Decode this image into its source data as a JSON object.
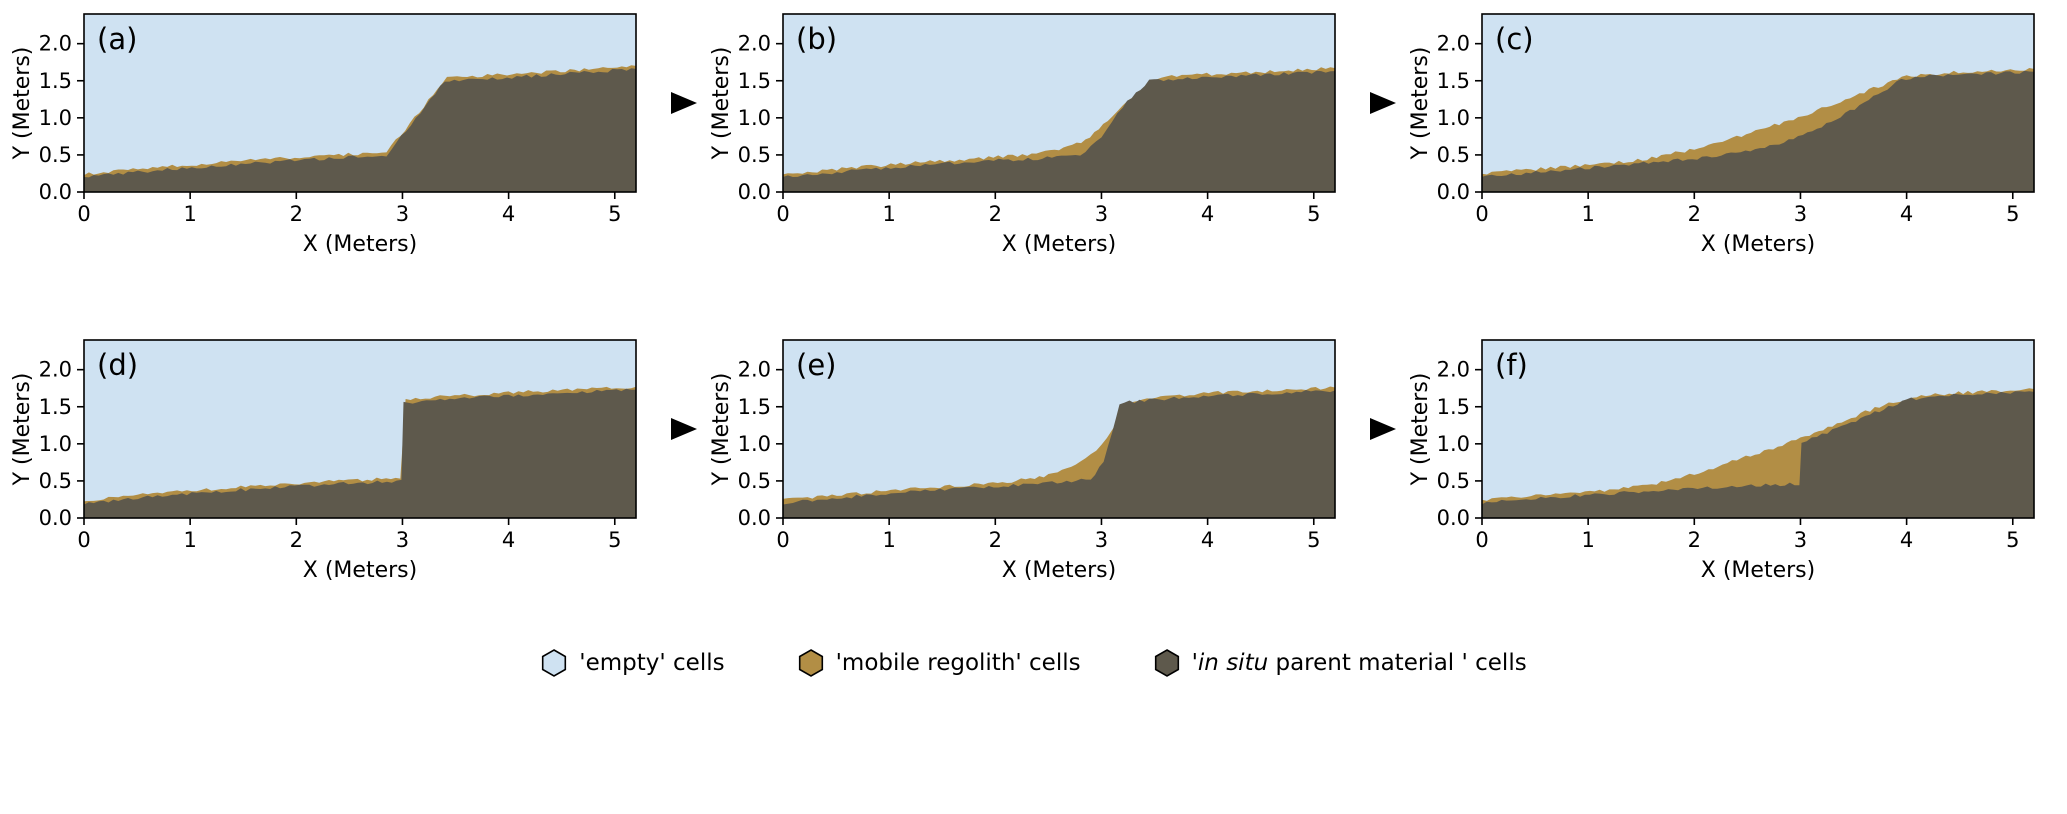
{
  "colors": {
    "empty": "#cfe2f2",
    "regolith": "#b28e45",
    "parent": "#5e594c",
    "axis": "#000000",
    "background": "#ffffff"
  },
  "legend": {
    "items": [
      {
        "id": "empty-cells",
        "color_key": "empty",
        "segments": [
          {
            "text": "'empty' cells",
            "italic": false
          }
        ]
      },
      {
        "id": "mobile-regolith-cells",
        "color_key": "regolith",
        "segments": [
          {
            "text": "'mobile regolith' cells",
            "italic": false
          }
        ]
      },
      {
        "id": "parent-material-cells",
        "color_key": "parent",
        "segments": [
          {
            "text": "'",
            "italic": false
          },
          {
            "text": "in situ",
            "italic": true
          },
          {
            "text": " parent material ' cells",
            "italic": false
          }
        ]
      }
    ]
  },
  "arrows": {
    "count": 4,
    "direction": "right",
    "color": "#000000"
  },
  "chart_data": [
    {
      "type": "area",
      "id": "a",
      "panel_label": "(a)",
      "xlabel": "X (Meters)",
      "ylabel": "Y (Meters)",
      "xlim": [
        0,
        5.2
      ],
      "ylim": [
        0,
        2.4
      ],
      "xticks": [
        0,
        1,
        2,
        3,
        4,
        5
      ],
      "yticks": [
        0,
        0.5,
        1,
        1.5,
        2
      ],
      "grid": false,
      "series": [
        {
          "name": "in situ parent material surface",
          "points": [
            [
              0,
              0.2
            ],
            [
              0.6,
              0.28
            ],
            [
              1.2,
              0.35
            ],
            [
              1.8,
              0.41
            ],
            [
              2.4,
              0.46
            ],
            [
              2.85,
              0.5
            ],
            [
              3.4,
              1.5
            ],
            [
              3.8,
              1.53
            ],
            [
              4.4,
              1.58
            ],
            [
              5.2,
              1.66
            ]
          ]
        },
        {
          "name": "mobile regolith surface",
          "points": [
            [
              0,
              0.24
            ],
            [
              0.6,
              0.32
            ],
            [
              1.2,
              0.39
            ],
            [
              1.8,
              0.45
            ],
            [
              2.4,
              0.5
            ],
            [
              2.85,
              0.54
            ],
            [
              3.42,
              1.54
            ],
            [
              3.8,
              1.57
            ],
            [
              4.4,
              1.62
            ],
            [
              5.2,
              1.7
            ]
          ]
        }
      ]
    },
    {
      "type": "area",
      "id": "b",
      "panel_label": "(b)",
      "xlabel": "X (Meters)",
      "ylabel": "Y (Meters)",
      "xlim": [
        0,
        5.2
      ],
      "ylim": [
        0,
        2.4
      ],
      "xticks": [
        0,
        1,
        2,
        3,
        4,
        5
      ],
      "yticks": [
        0,
        0.5,
        1,
        1.5,
        2
      ],
      "grid": false,
      "series": [
        {
          "name": "in situ parent material surface",
          "points": [
            [
              0,
              0.2
            ],
            [
              0.6,
              0.28
            ],
            [
              1.2,
              0.35
            ],
            [
              1.8,
              0.41
            ],
            [
              2.4,
              0.45
            ],
            [
              2.8,
              0.5
            ],
            [
              3.0,
              0.72
            ],
            [
              3.2,
              1.15
            ],
            [
              3.45,
              1.5
            ],
            [
              3.9,
              1.54
            ],
            [
              4.5,
              1.58
            ],
            [
              5.2,
              1.63
            ]
          ]
        },
        {
          "name": "mobile regolith surface",
          "points": [
            [
              0,
              0.24
            ],
            [
              0.6,
              0.32
            ],
            [
              1.2,
              0.39
            ],
            [
              1.8,
              0.45
            ],
            [
              2.3,
              0.5
            ],
            [
              2.6,
              0.57
            ],
            [
              2.85,
              0.7
            ],
            [
              3.1,
              1.0
            ],
            [
              3.3,
              1.3
            ],
            [
              3.52,
              1.54
            ],
            [
              3.9,
              1.58
            ],
            [
              4.5,
              1.62
            ],
            [
              5.2,
              1.67
            ]
          ]
        }
      ]
    },
    {
      "type": "area",
      "id": "c",
      "panel_label": "(c)",
      "xlabel": "X (Meters)",
      "ylabel": "Y (Meters)",
      "xlim": [
        0,
        5.2
      ],
      "ylim": [
        0,
        2.4
      ],
      "xticks": [
        0,
        1,
        2,
        3,
        4,
        5
      ],
      "yticks": [
        0,
        0.5,
        1,
        1.5,
        2
      ],
      "grid": false,
      "series": [
        {
          "name": "in situ parent material surface",
          "points": [
            [
              0,
              0.2
            ],
            [
              0.6,
              0.28
            ],
            [
              1.2,
              0.35
            ],
            [
              1.8,
              0.42
            ],
            [
              2.3,
              0.5
            ],
            [
              2.8,
              0.64
            ],
            [
              3.2,
              0.88
            ],
            [
              3.6,
              1.2
            ],
            [
              3.95,
              1.52
            ],
            [
              4.3,
              1.57
            ],
            [
              5.2,
              1.62
            ]
          ]
        },
        {
          "name": "mobile regolith surface",
          "points": [
            [
              0,
              0.24
            ],
            [
              0.6,
              0.32
            ],
            [
              1.2,
              0.38
            ],
            [
              1.6,
              0.46
            ],
            [
              2.0,
              0.58
            ],
            [
              2.4,
              0.74
            ],
            [
              2.8,
              0.92
            ],
            [
              3.2,
              1.12
            ],
            [
              3.6,
              1.35
            ],
            [
              4.0,
              1.56
            ],
            [
              4.4,
              1.61
            ],
            [
              5.2,
              1.66
            ]
          ]
        }
      ]
    },
    {
      "type": "area",
      "id": "d",
      "panel_label": "(d)",
      "xlabel": "X (Meters)",
      "ylabel": "Y (Meters)",
      "xlim": [
        0,
        5.2
      ],
      "ylim": [
        0,
        2.4
      ],
      "xticks": [
        0,
        1,
        2,
        3,
        4,
        5
      ],
      "yticks": [
        0,
        0.5,
        1,
        1.5,
        2
      ],
      "grid": false,
      "series": [
        {
          "name": "in situ parent material surface",
          "points": [
            [
              0,
              0.2
            ],
            [
              0.6,
              0.28
            ],
            [
              1.2,
              0.35
            ],
            [
              1.8,
              0.41
            ],
            [
              2.4,
              0.46
            ],
            [
              2.99,
              0.5
            ],
            [
              3.01,
              1.55
            ],
            [
              3.4,
              1.6
            ],
            [
              4.0,
              1.65
            ],
            [
              4.6,
              1.69
            ],
            [
              5.2,
              1.73
            ]
          ]
        },
        {
          "name": "mobile regolith surface",
          "points": [
            [
              0,
              0.24
            ],
            [
              0.6,
              0.32
            ],
            [
              1.2,
              0.39
            ],
            [
              1.8,
              0.45
            ],
            [
              2.4,
              0.5
            ],
            [
              2.98,
              0.54
            ],
            [
              3.03,
              1.59
            ],
            [
              3.4,
              1.64
            ],
            [
              4.0,
              1.69
            ],
            [
              4.6,
              1.73
            ],
            [
              5.2,
              1.77
            ]
          ]
        }
      ]
    },
    {
      "type": "area",
      "id": "e",
      "panel_label": "(e)",
      "xlabel": "X (Meters)",
      "ylabel": "Y (Meters)",
      "xlim": [
        0,
        5.2
      ],
      "ylim": [
        0,
        2.4
      ],
      "xticks": [
        0,
        1,
        2,
        3,
        4,
        5
      ],
      "yticks": [
        0,
        0.5,
        1,
        1.5,
        2
      ],
      "grid": false,
      "series": [
        {
          "name": "in situ parent material surface",
          "points": [
            [
              0,
              0.2
            ],
            [
              0.6,
              0.28
            ],
            [
              1.2,
              0.35
            ],
            [
              1.8,
              0.41
            ],
            [
              2.4,
              0.46
            ],
            [
              2.9,
              0.52
            ],
            [
              3.02,
              0.75
            ],
            [
              3.1,
              1.15
            ],
            [
              3.17,
              1.55
            ],
            [
              3.5,
              1.6
            ],
            [
              4.1,
              1.65
            ],
            [
              4.7,
              1.69
            ],
            [
              5.2,
              1.72
            ]
          ]
        },
        {
          "name": "mobile regolith surface",
          "points": [
            [
              0,
              0.24
            ],
            [
              0.6,
              0.32
            ],
            [
              1.2,
              0.39
            ],
            [
              1.8,
              0.45
            ],
            [
              2.2,
              0.5
            ],
            [
              2.5,
              0.58
            ],
            [
              2.8,
              0.75
            ],
            [
              3.0,
              0.97
            ],
            [
              3.15,
              1.3
            ],
            [
              3.3,
              1.58
            ],
            [
              3.6,
              1.64
            ],
            [
              4.1,
              1.69
            ],
            [
              4.7,
              1.73
            ],
            [
              5.2,
              1.76
            ]
          ]
        }
      ]
    },
    {
      "type": "area",
      "id": "f",
      "panel_label": "(f)",
      "xlabel": "X (Meters)",
      "ylabel": "Y (Meters)",
      "xlim": [
        0,
        5.2
      ],
      "ylim": [
        0,
        2.4
      ],
      "xticks": [
        0,
        1,
        2,
        3,
        4,
        5
      ],
      "yticks": [
        0,
        0.5,
        1,
        1.5,
        2
      ],
      "grid": false,
      "series": [
        {
          "name": "in situ parent material surface",
          "points": [
            [
              0,
              0.2
            ],
            [
              0.6,
              0.27
            ],
            [
              1.2,
              0.33
            ],
            [
              1.8,
              0.38
            ],
            [
              2.4,
              0.43
            ],
            [
              2.99,
              0.46
            ],
            [
              3.01,
              1.02
            ],
            [
              3.3,
              1.18
            ],
            [
              3.7,
              1.42
            ],
            [
              4.0,
              1.6
            ],
            [
              4.4,
              1.65
            ],
            [
              5.2,
              1.7
            ]
          ]
        },
        {
          "name": "mobile regolith surface",
          "points": [
            [
              0,
              0.24
            ],
            [
              0.6,
              0.31
            ],
            [
              1.2,
              0.38
            ],
            [
              1.6,
              0.45
            ],
            [
              2.0,
              0.6
            ],
            [
              2.4,
              0.78
            ],
            [
              2.7,
              0.92
            ],
            [
              3.0,
              1.08
            ],
            [
              3.3,
              1.25
            ],
            [
              3.7,
              1.48
            ],
            [
              4.05,
              1.63
            ],
            [
              4.4,
              1.68
            ],
            [
              5.2,
              1.74
            ]
          ]
        }
      ]
    }
  ]
}
